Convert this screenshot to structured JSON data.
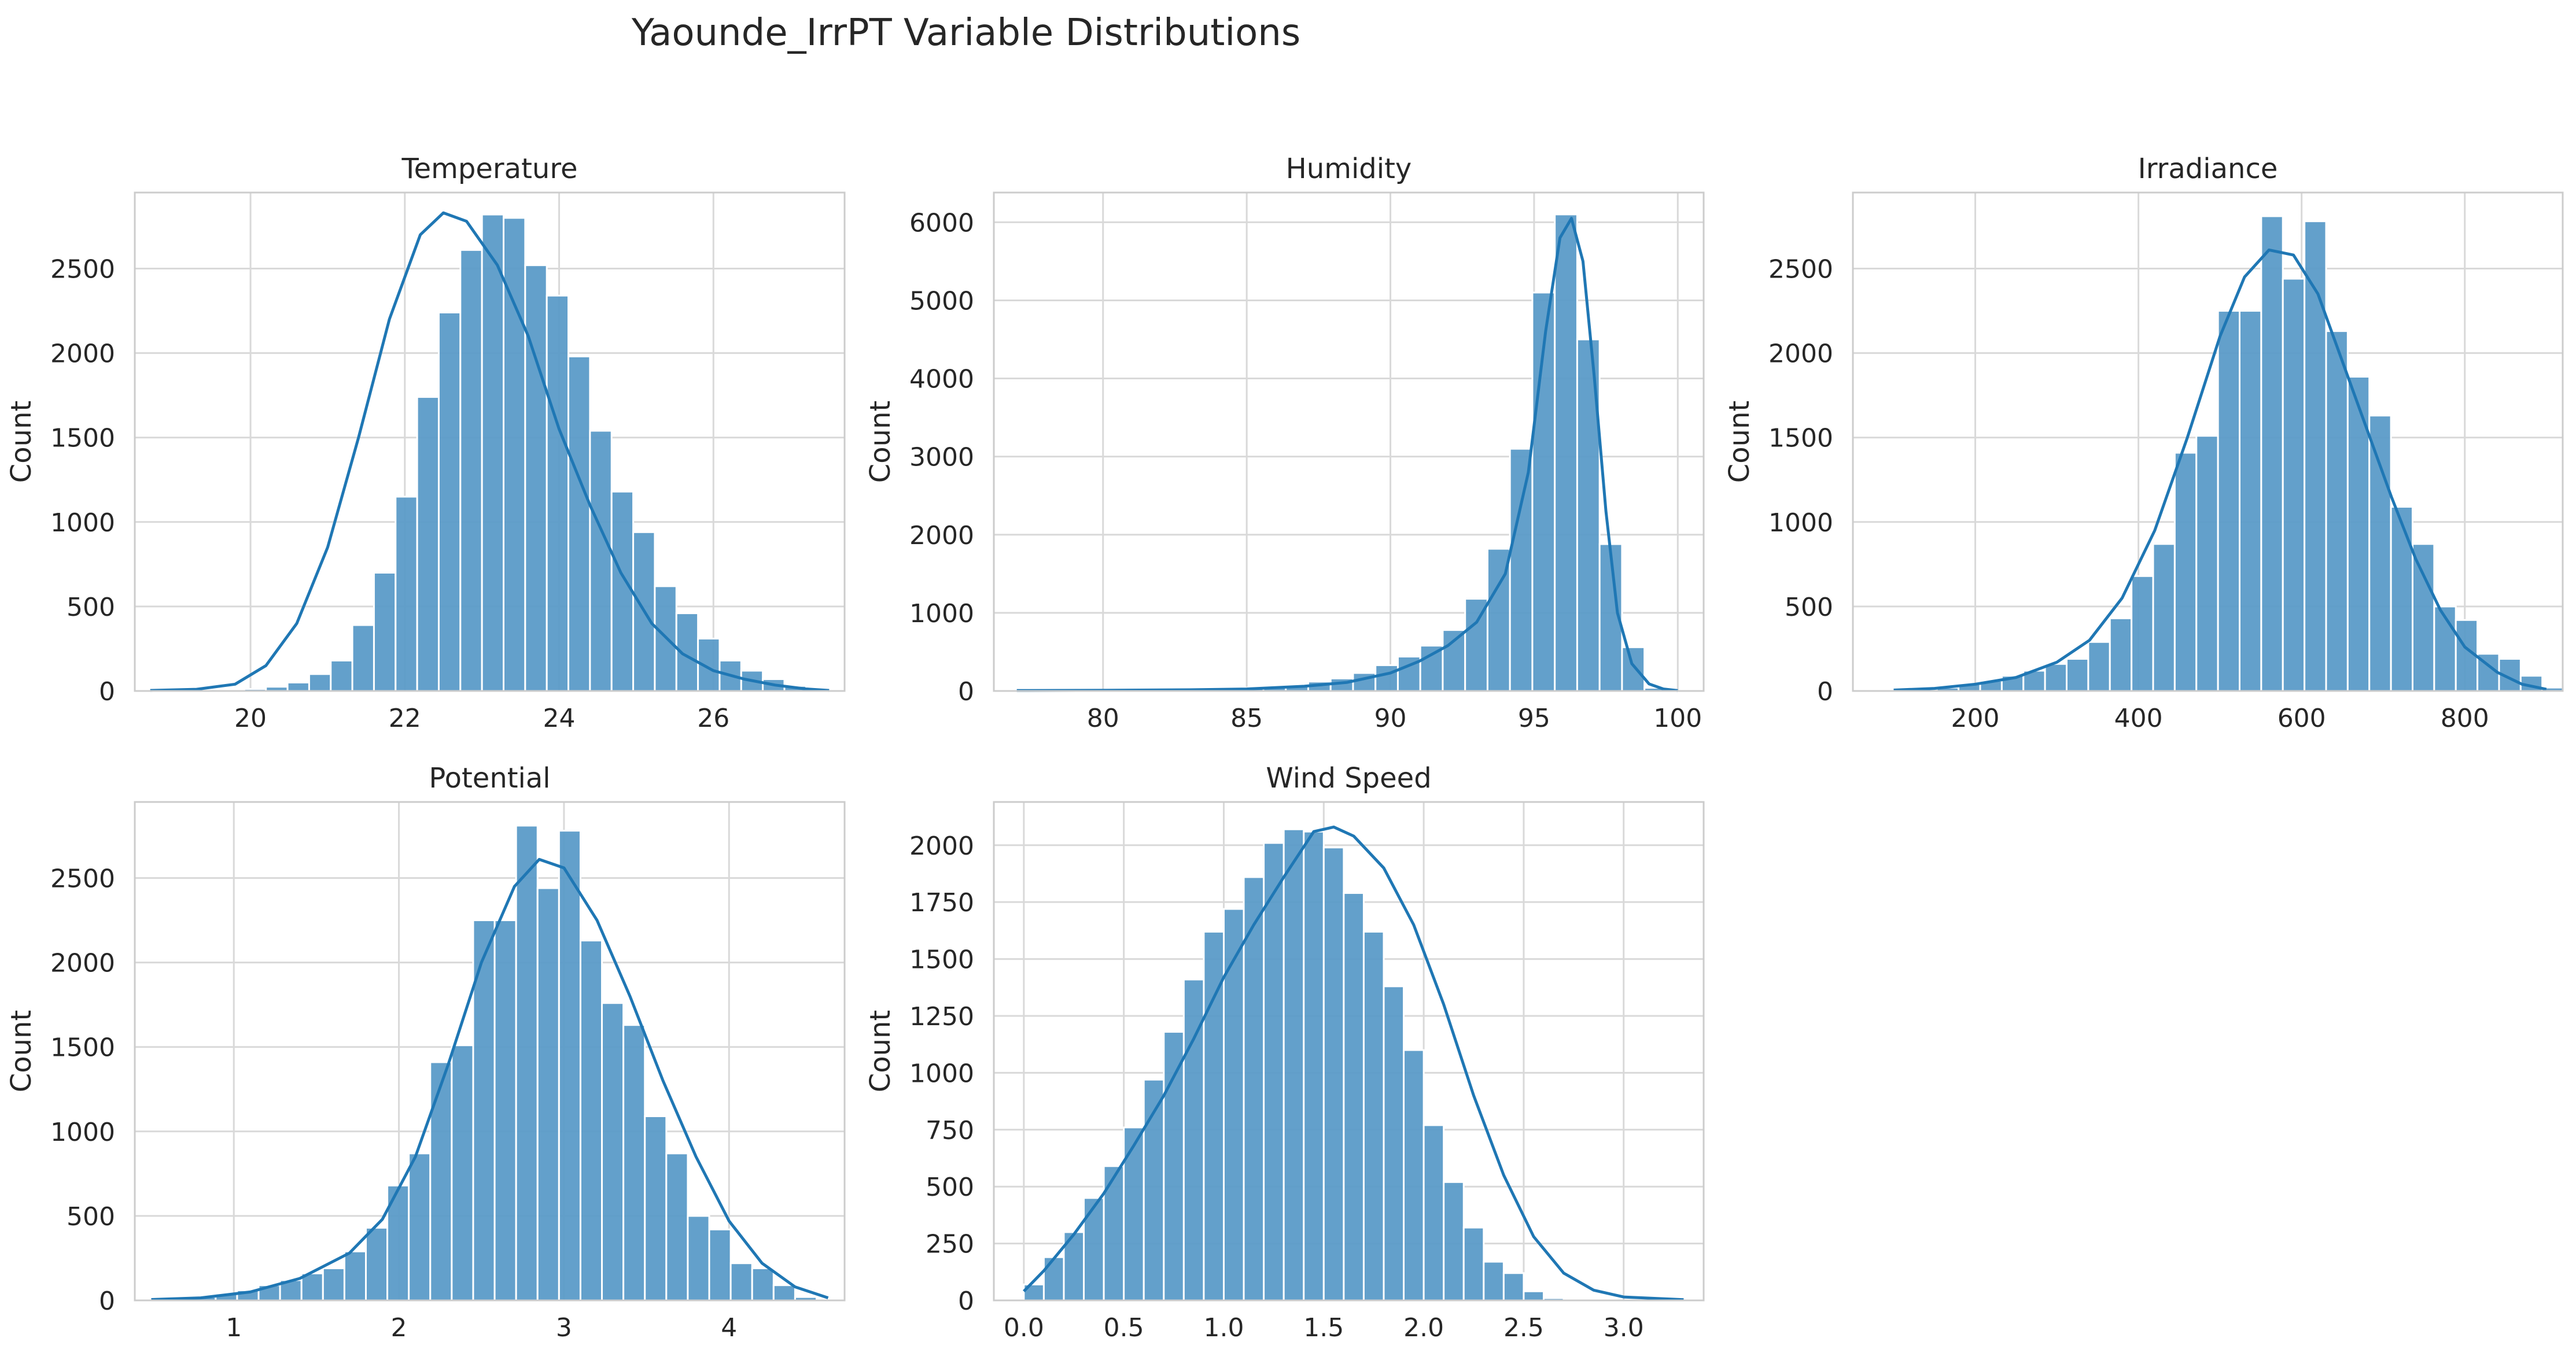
{
  "figure": {
    "title": "Yaounde_IrrPT Variable Distributions"
  },
  "colors": {
    "bar_fill": "#5b9bc8",
    "bar_edge": "#ffffff",
    "kde_line": "#1f77b4",
    "grid": "#d9d9d9",
    "spine": "#cccccc",
    "text": "#262626"
  },
  "chart_data": [
    {
      "type": "bar",
      "title": "Temperature",
      "xlabel": "",
      "ylabel": "Count",
      "xlim": [
        18.5,
        27.7
      ],
      "ylim": [
        0,
        2950
      ],
      "xticks": [
        20,
        22,
        24,
        26
      ],
      "xtick_labels": [
        "20",
        "22",
        "24",
        "26"
      ],
      "yticks": [
        0,
        500,
        1000,
        1500,
        2000,
        2500
      ],
      "ytick_labels": [
        "0",
        "500",
        "1000",
        "1500",
        "2000",
        "2500"
      ],
      "bins_start": 18.8,
      "bin_width": 0.28,
      "counts": [
        2,
        3,
        5,
        8,
        12,
        25,
        50,
        100,
        180,
        390,
        700,
        1150,
        1740,
        2240,
        2610,
        2820,
        2800,
        2520,
        2340,
        1980,
        1540,
        1180,
        940,
        620,
        460,
        310,
        180,
        120,
        70,
        30,
        15
      ],
      "kde": [
        [
          18.7,
          3
        ],
        [
          19.3,
          10
        ],
        [
          19.8,
          40
        ],
        [
          20.2,
          150
        ],
        [
          20.6,
          400
        ],
        [
          21.0,
          850
        ],
        [
          21.4,
          1500
        ],
        [
          21.8,
          2200
        ],
        [
          22.2,
          2700
        ],
        [
          22.5,
          2830
        ],
        [
          22.8,
          2780
        ],
        [
          23.2,
          2520
        ],
        [
          23.6,
          2100
        ],
        [
          24.0,
          1550
        ],
        [
          24.4,
          1100
        ],
        [
          24.8,
          700
        ],
        [
          25.2,
          400
        ],
        [
          25.6,
          220
        ],
        [
          26.0,
          120
        ],
        [
          26.4,
          70
        ],
        [
          26.8,
          35
        ],
        [
          27.2,
          12
        ],
        [
          27.5,
          3
        ]
      ]
    },
    {
      "type": "bar",
      "title": "Humidity",
      "xlabel": "",
      "ylabel": "Count",
      "xlim": [
        76.2,
        100.9
      ],
      "ylim": [
        0,
        6380
      ],
      "xticks": [
        80,
        85,
        90,
        95,
        100
      ],
      "xtick_labels": [
        "80",
        "85",
        "90",
        "95",
        "100"
      ],
      "yticks": [
        0,
        1000,
        2000,
        3000,
        4000,
        5000,
        6000
      ],
      "ytick_labels": [
        "0",
        "1000",
        "2000",
        "3000",
        "4000",
        "5000",
        "6000"
      ],
      "bins_start": 77.0,
      "bin_width": 0.78,
      "counts": [
        5,
        5,
        6,
        7,
        8,
        10,
        12,
        15,
        20,
        30,
        40,
        55,
        70,
        120,
        160,
        230,
        330,
        440,
        580,
        780,
        1180,
        1820,
        3100,
        5100,
        6100,
        4500,
        1880,
        560,
        40
      ],
      "kde": [
        [
          77.0,
          5
        ],
        [
          80.0,
          8
        ],
        [
          83.0,
          15
        ],
        [
          85.0,
          25
        ],
        [
          87.0,
          60
        ],
        [
          88.5,
          110
        ],
        [
          90.0,
          230
        ],
        [
          91.0,
          380
        ],
        [
          92.0,
          580
        ],
        [
          93.0,
          880
        ],
        [
          94.0,
          1500
        ],
        [
          94.8,
          2800
        ],
        [
          95.4,
          4600
        ],
        [
          95.9,
          5800
        ],
        [
          96.3,
          6050
        ],
        [
          96.7,
          5500
        ],
        [
          97.1,
          4000
        ],
        [
          97.5,
          2300
        ],
        [
          97.9,
          1000
        ],
        [
          98.4,
          350
        ],
        [
          99.0,
          90
        ],
        [
          99.5,
          25
        ],
        [
          100.0,
          5
        ]
      ]
    },
    {
      "type": "bar",
      "title": "Irradiance",
      "xlabel": "",
      "ylabel": "Count",
      "xlim": [
        50,
        920
      ],
      "ylim": [
        0,
        2950
      ],
      "xticks": [
        200,
        400,
        600,
        800
      ],
      "xtick_labels": [
        "200",
        "400",
        "600",
        "800"
      ],
      "yticks": [
        0,
        500,
        1000,
        1500,
        2000,
        2500
      ],
      "ytick_labels": [
        "0",
        "500",
        "1000",
        "1500",
        "2000",
        "2500"
      ],
      "bins_start": 100,
      "bin_width": 26.5,
      "counts": [
        5,
        10,
        20,
        40,
        60,
        90,
        120,
        160,
        190,
        290,
        430,
        680,
        870,
        1410,
        1510,
        2250,
        2250,
        2810,
        2440,
        2780,
        2130,
        1860,
        1630,
        1090,
        870,
        500,
        420,
        220,
        190,
        90,
        20
      ],
      "kde": [
        [
          100,
          5
        ],
        [
          150,
          15
        ],
        [
          200,
          40
        ],
        [
          250,
          80
        ],
        [
          300,
          170
        ],
        [
          340,
          300
        ],
        [
          380,
          550
        ],
        [
          420,
          950
        ],
        [
          460,
          1500
        ],
        [
          500,
          2100
        ],
        [
          530,
          2450
        ],
        [
          560,
          2610
        ],
        [
          590,
          2580
        ],
        [
          620,
          2350
        ],
        [
          650,
          1950
        ],
        [
          680,
          1550
        ],
        [
          710,
          1150
        ],
        [
          740,
          780
        ],
        [
          770,
          480
        ],
        [
          800,
          260
        ],
        [
          840,
          110
        ],
        [
          870,
          40
        ],
        [
          900,
          10
        ]
      ]
    },
    {
      "type": "bar",
      "title": "Potential",
      "xlabel": "",
      "ylabel": "Count",
      "xlim": [
        0.4,
        4.7
      ],
      "ylim": [
        0,
        2950
      ],
      "xticks": [
        1,
        2,
        3,
        4
      ],
      "xtick_labels": [
        "1",
        "2",
        "3",
        "4"
      ],
      "yticks": [
        0,
        500,
        1000,
        1500,
        2000,
        2500
      ],
      "ytick_labels": [
        "0",
        "500",
        "1000",
        "1500",
        "2000",
        "2500"
      ],
      "bins_start": 0.5,
      "bin_width": 0.13,
      "counts": [
        5,
        10,
        20,
        40,
        60,
        90,
        120,
        160,
        190,
        290,
        430,
        680,
        870,
        1410,
        1510,
        2250,
        2250,
        2810,
        2440,
        2780,
        2130,
        1760,
        1630,
        1090,
        870,
        500,
        420,
        220,
        190,
        90,
        20
      ],
      "kde": [
        [
          0.5,
          5
        ],
        [
          0.8,
          15
        ],
        [
          1.1,
          50
        ],
        [
          1.4,
          130
        ],
        [
          1.7,
          280
        ],
        [
          1.9,
          480
        ],
        [
          2.1,
          850
        ],
        [
          2.3,
          1400
        ],
        [
          2.5,
          2000
        ],
        [
          2.7,
          2450
        ],
        [
          2.85,
          2610
        ],
        [
          3.0,
          2560
        ],
        [
          3.2,
          2250
        ],
        [
          3.4,
          1800
        ],
        [
          3.6,
          1300
        ],
        [
          3.8,
          850
        ],
        [
          4.0,
          470
        ],
        [
          4.2,
          220
        ],
        [
          4.4,
          80
        ],
        [
          4.6,
          15
        ]
      ]
    },
    {
      "type": "bar",
      "title": "Wind Speed",
      "xlabel": "",
      "ylabel": "Count",
      "xlim": [
        -0.15,
        3.4
      ],
      "ylim": [
        0,
        2190
      ],
      "xticks": [
        0.0,
        0.5,
        1.0,
        1.5,
        2.0,
        2.5,
        3.0
      ],
      "xtick_labels": [
        "0.0",
        "0.5",
        "1.0",
        "1.5",
        "2.0",
        "2.5",
        "3.0"
      ],
      "yticks": [
        0,
        250,
        500,
        750,
        1000,
        1250,
        1500,
        1750,
        2000
      ],
      "ytick_labels": [
        "0",
        "250",
        "500",
        "750",
        "1000",
        "1250",
        "1500",
        "1750",
        "2000"
      ],
      "bins_start": 0.0,
      "bin_width": 0.1,
      "counts": [
        70,
        190,
        300,
        450,
        590,
        760,
        970,
        1180,
        1410,
        1620,
        1720,
        1860,
        2010,
        2070,
        2060,
        1990,
        1790,
        1620,
        1380,
        1100,
        770,
        520,
        320,
        170,
        120,
        40,
        10,
        5
      ],
      "kde": [
        [
          0.0,
          40
        ],
        [
          0.1,
          130
        ],
        [
          0.25,
          290
        ],
        [
          0.4,
          470
        ],
        [
          0.55,
          680
        ],
        [
          0.7,
          900
        ],
        [
          0.85,
          1150
        ],
        [
          1.0,
          1420
        ],
        [
          1.15,
          1650
        ],
        [
          1.3,
          1860
        ],
        [
          1.45,
          2060
        ],
        [
          1.55,
          2080
        ],
        [
          1.65,
          2040
        ],
        [
          1.8,
          1900
        ],
        [
          1.95,
          1650
        ],
        [
          2.1,
          1300
        ],
        [
          2.25,
          900
        ],
        [
          2.4,
          550
        ],
        [
          2.55,
          280
        ],
        [
          2.7,
          120
        ],
        [
          2.85,
          45
        ],
        [
          3.0,
          15
        ],
        [
          3.3,
          3
        ]
      ]
    }
  ]
}
